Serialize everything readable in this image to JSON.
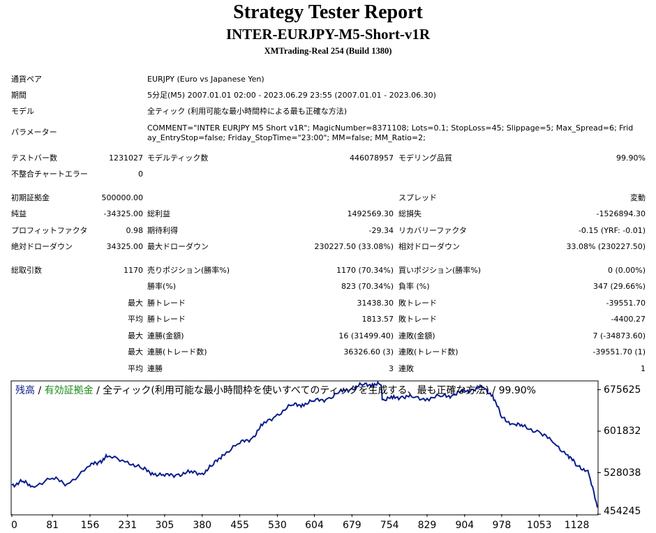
{
  "report": {
    "title": "Strategy Tester Report",
    "subtitle": "INTER-EURJPY-M5-Short-v1R",
    "server": "XMTrading-Real 254 (Build 1380)"
  },
  "info": {
    "symbol_label": "通貨ペア",
    "symbol_value": "EURJPY (Euro vs Japanese Yen)",
    "period_label": "期間",
    "period_value": "5分足(M5) 2007.01.01 02:00 - 2023.06.29 23:55 (2007.01.01 - 2023.06.30)",
    "model_label": "モデル",
    "model_value": "全ティック (利用可能な最小時間枠による最も正確な方法)",
    "params_label": "パラメーター",
    "params_value": "COMMENT=\"INTER EURJPY M5 Short v1R\"; MagicNumber=8371108; Lots=0.1; StopLoss=45; Slippage=5; Max_Spread=6; Friday_EntryStop=false; Friday_StopTime=\"23:00\"; MM=false; MM_Ratio=2;"
  },
  "stats": {
    "bars_label": "テストバー数",
    "bars_value": "1231027",
    "ticks_label": "モデルティック数",
    "ticks_value": "446078957",
    "quality_label": "モデリング品質",
    "quality_value": "99.90%",
    "errors_label": "不整合チャートエラー",
    "errors_value": "0",
    "deposit_label": "初期証拠金",
    "deposit_value": "500000.00",
    "spread_label": "スプレッド",
    "spread_value": "変動",
    "net_label": "純益",
    "net_value": "-34325.00",
    "gross_profit_label": "総利益",
    "gross_profit_value": "1492569.30",
    "gross_loss_label": "総損失",
    "gross_loss_value": "-1526894.30",
    "pf_label": "プロフィットファクタ",
    "pf_value": "0.98",
    "expected_label": "期待利得",
    "expected_value": "-29.34",
    "recovery_label": "リカバリーファクタ",
    "recovery_value": "-0.15 (YRF: -0.01)",
    "abs_dd_label": "絶対ドローダウン",
    "abs_dd_value": "34325.00",
    "max_dd_label": "最大ドローダウン",
    "max_dd_value": "230227.50 (33.08%)",
    "rel_dd_label": "相対ドローダウン",
    "rel_dd_value": "33.08% (230227.50)",
    "trades_label": "総取引数",
    "trades_value": "1170",
    "short_label": "売りポジション(勝率%)",
    "short_value": "1170 (70.34%)",
    "long_label": "買いポジション(勝率%)",
    "long_value": "0 (0.00%)",
    "winrate_label": "勝率(%)",
    "winrate_value": "823 (70.34%)",
    "lossrate_label": "負率 (%)",
    "lossrate_value": "347 (29.66%)",
    "max_prefix": "最大",
    "avg_prefix": "平均",
    "largest_win_label": "勝トレード",
    "largest_win_value": "31438.30",
    "largest_loss_label": "敗トレード",
    "largest_loss_value": "-39551.70",
    "avg_win_label": "勝トレード",
    "avg_win_value": "1813.57",
    "avg_loss_label": "敗トレード",
    "avg_loss_value": "-4400.27",
    "cons_wins_label": "連勝(金額)",
    "cons_wins_value": "16 (31499.40)",
    "cons_losses_label": "連敗(金額)",
    "cons_losses_value": "7 (-34873.60)",
    "cons_profit_label": "連勝(トレード数)",
    "cons_profit_value": "36326.60 (3)",
    "cons_loss_label": "連敗(トレード数)",
    "cons_loss_value": "-39551.70 (1)",
    "avg_cons_wins_label": "連勝",
    "avg_cons_wins_value": "3",
    "avg_cons_losses_label": "連敗",
    "avg_cons_losses_value": "1"
  },
  "legend": {
    "balance": "残高",
    "sep1": " / ",
    "equity": "有効証拠金",
    "sep2": " / ",
    "model": "全ティック(利用可能な最小時間枠を使いすべてのティックを生成する、最も正確な方法)",
    "sep3": " / ",
    "quality": "99.90%"
  },
  "colors": {
    "balance_line": "#0a1e8a",
    "equity_text": "#1a8a1a",
    "frame": "#000000"
  },
  "chart_data": {
    "type": "line",
    "series": [
      {
        "name": "残高",
        "x": [
          0,
          20,
          40,
          81,
          110,
          156,
          175,
          190,
          231,
          260,
          280,
          305,
          330,
          355,
          380,
          400,
          420,
          455,
          480,
          500,
          530,
          560,
          580,
          604,
          630,
          660,
          679,
          700,
          720,
          737,
          740,
          760,
          780,
          800,
          829,
          860,
          880,
          900,
          920,
          940,
          960,
          978,
          1000,
          1020,
          1053,
          1080,
          1110,
          1128,
          1150,
          1169
        ],
        "y": [
          506000,
          512000,
          504000,
          518000,
          508000,
          540000,
          548000,
          556000,
          548000,
          535000,
          528000,
          522000,
          525000,
          528000,
          527000,
          540000,
          560000,
          580000,
          590000,
          612000,
          632000,
          648000,
          650000,
          655000,
          660000,
          672000,
          678000,
          684000,
          686000,
          684000,
          658000,
          660000,
          664000,
          662000,
          660000,
          664000,
          666000,
          672000,
          676000,
          680000,
          666000,
          626000,
          615000,
          610000,
          601000,
          582000,
          560000,
          540000,
          532000,
          466000
        ]
      }
    ],
    "y_ticks": [
      "675625",
      "601832",
      "528038",
      "454245"
    ],
    "x_ticks": [
      "0",
      "81",
      "156",
      "231",
      "305",
      "380",
      "455",
      "530",
      "604",
      "679",
      "754",
      "829",
      "904",
      "978",
      "1053",
      "1128"
    ],
    "xlim": [
      0,
      1169
    ],
    "ylim": [
      454245,
      690000
    ]
  }
}
